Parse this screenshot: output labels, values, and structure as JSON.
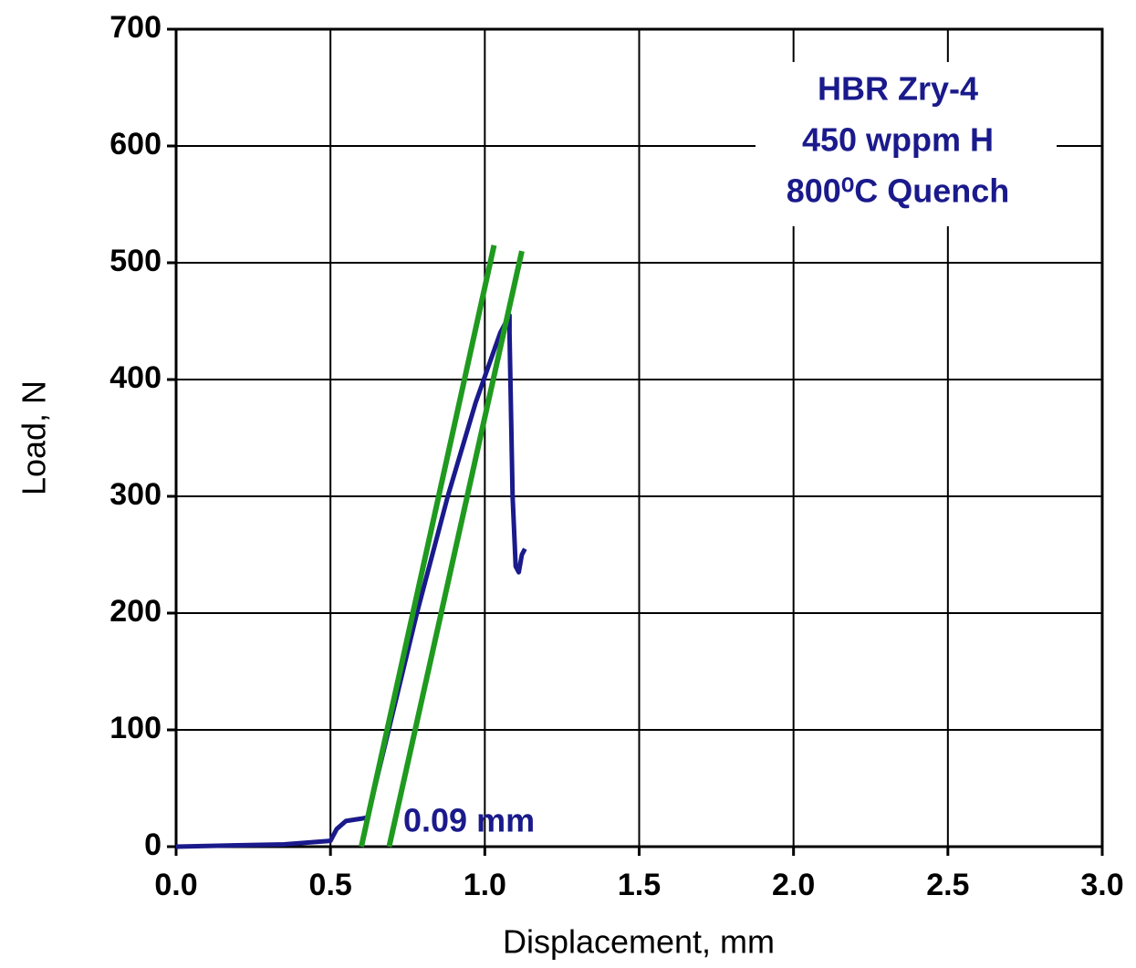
{
  "chart_data": {
    "type": "line",
    "x_label": "Displacement, mm",
    "y_label": "Load, N",
    "xlim": [
      0,
      3.0
    ],
    "ylim": [
      0,
      700
    ],
    "xticks": [
      {
        "value": 0,
        "label": "0.0"
      },
      0.5,
      {
        "value": 1,
        "label": "1.0"
      },
      1.5,
      {
        "value": 2,
        "label": "2.0"
      },
      2.5,
      {
        "value": 3,
        "label": "3.0"
      }
    ],
    "yticks": [
      0,
      100,
      200,
      300,
      400,
      500,
      600,
      700
    ],
    "grid": true,
    "series": [
      {
        "color": "#1a1a8c",
        "x": [
          0,
          0.35,
          0.5,
          0.52,
          0.55,
          0.6,
          0.62,
          0.78,
          0.88,
          0.97,
          1.05,
          1.08,
          1.08,
          1.09,
          1.1,
          1.11,
          1.12,
          1.13
        ],
        "values": [
          0,
          2,
          5,
          15,
          22,
          24,
          25,
          200,
          300,
          380,
          440,
          455,
          440,
          300,
          240,
          235,
          250,
          255
        ]
      },
      {
        "color": "#1f9a1f",
        "x": [
          0.6,
          1.03
        ],
        "values": [
          0,
          515
        ]
      },
      {
        "color": "#1f9a1f",
        "x": [
          0.69,
          1.12
        ],
        "values": [
          0,
          510
        ]
      }
    ],
    "annotations": [
      "HBR Zry-4",
      "450 wppm H",
      "800⁰C Quench",
      "0.09 mm"
    ]
  }
}
